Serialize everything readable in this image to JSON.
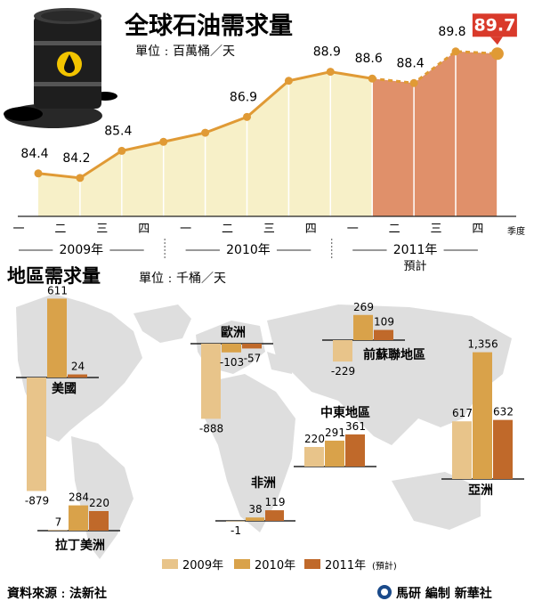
{
  "title": "全球石油需求量",
  "unit": "單位﹕百萬桶／天",
  "quarter_label": "季度",
  "forecast_label": "預計",
  "colors": {
    "area_actual": "#f7f0c8",
    "area_forecast": "#e0906a",
    "line": "#e09a35",
    "dot": "#e09a35",
    "highlight_box": "#d93a2b",
    "bar_2009": "#e8c48a",
    "bar_2010": "#d9a24a",
    "bar_2011": "#c0692a",
    "map": "#dedede"
  },
  "chart_data": [
    {
      "type": "area",
      "title": "全球石油需求量",
      "ylabel": "單位﹕百萬桶／天",
      "xlabel": "季度",
      "categories": [
        "一",
        "二",
        "三",
        "四",
        "一",
        "二",
        "三",
        "四",
        "一",
        "二",
        "三",
        "四"
      ],
      "years": [
        {
          "label": "2009年",
          "start": 0,
          "end": 3
        },
        {
          "label": "2010年",
          "start": 4,
          "end": 7
        },
        {
          "label": "2011年",
          "start": 8,
          "end": 11,
          "note": "預計"
        }
      ],
      "values": [
        84.4,
        84.2,
        85.4,
        85.8,
        86.2,
        86.9,
        88.5,
        88.9,
        88.6,
        88.4,
        89.8,
        89.7
      ],
      "labels_shown": [
        "84.4",
        "84.2",
        "85.4",
        "",
        "",
        "86.9",
        "",
        "88.9",
        "88.6",
        "88.4",
        "89.8",
        "89.7"
      ],
      "forecast_start_index": 8,
      "ylim": [
        82.5,
        90.5
      ]
    },
    {
      "type": "bar",
      "title": "地區需求量",
      "ylabel": "單位﹕千桶／天",
      "legend": [
        "2009年",
        "2010年",
        "2011年"
      ],
      "legend_note": "(預計)",
      "regions": [
        {
          "name": "美國",
          "values": [
            -879,
            611,
            24
          ]
        },
        {
          "name": "歐洲",
          "values": [
            -888,
            -103,
            -57
          ]
        },
        {
          "name": "前蘇聯地區",
          "values": [
            -229,
            269,
            109
          ]
        },
        {
          "name": "中東地區",
          "values": [
            220,
            291,
            361
          ]
        },
        {
          "name": "亞洲",
          "values": [
            617,
            1356,
            632
          ]
        },
        {
          "name": "非洲",
          "values": [
            -1,
            38,
            119
          ]
        },
        {
          "name": "拉丁美洲",
          "values": [
            7,
            284,
            220
          ]
        }
      ]
    }
  ],
  "section2_title": "地區需求量",
  "section2_unit": "單位﹕千桶／天",
  "legend_items": [
    "2009年",
    "2010年",
    "2011年"
  ],
  "legend_note": "(預計)",
  "source": "資料來源﹕法新社",
  "credit": "馬研 編制 新華社"
}
